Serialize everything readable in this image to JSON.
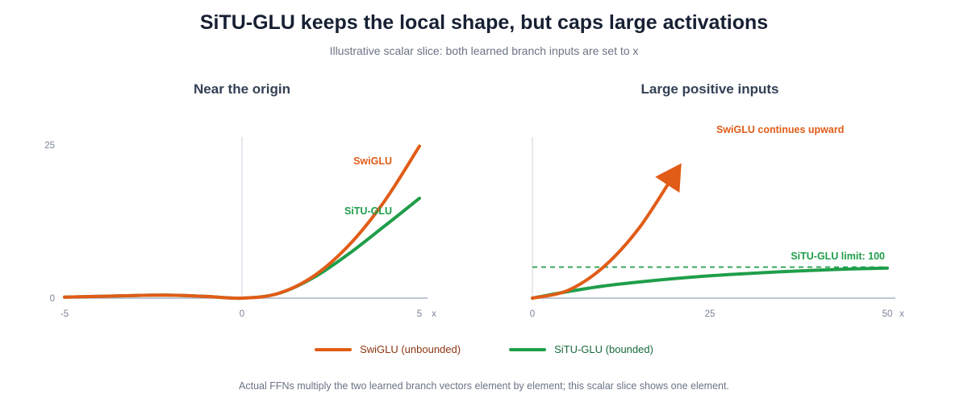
{
  "title": "SiTU-GLU keeps the local shape, but caps large activations",
  "subtitle": "Illustrative scalar slice: both learned branch inputs are set to x",
  "footnote": "Actual FFNs multiply the two learned branch vectors element by element; this scalar slice shows one element.",
  "colors": {
    "swiglu": "#e15c17",
    "situglu": "#1f9e4a",
    "axis": "#a8b4c8",
    "grid": "#d5dae2"
  },
  "legend": [
    {
      "label": "SwiGLU (unbounded)",
      "color": "#e15c17",
      "text_color": "#8a3510"
    },
    {
      "label": "SiTU-GLU (bounded)",
      "color": "#1f9e4a",
      "text_color": "#17693a"
    }
  ],
  "chart_data": [
    {
      "type": "line",
      "title": "Near the origin",
      "xlabel": "x",
      "xlim": [
        -5,
        5
      ],
      "ylim": [
        0,
        25
      ],
      "xticks": [
        "-5",
        "0",
        "5"
      ],
      "yticks": [
        "0",
        "25"
      ],
      "series": [
        {
          "name": "SwiGLU",
          "x": [
            -5,
            -4,
            -3,
            -2,
            -1,
            0,
            1,
            2,
            3,
            4,
            5
          ],
          "values": [
            0.17,
            0.29,
            0.43,
            0.48,
            0.27,
            0,
            0.73,
            3.52,
            8.57,
            15.71,
            24.83
          ]
        },
        {
          "name": "SiTU-GLU",
          "x": [
            -5,
            -4,
            -3,
            -2,
            -1,
            0,
            1,
            2,
            3,
            4,
            5
          ],
          "values": [
            0.17,
            0.29,
            0.43,
            0.48,
            0.27,
            0,
            0.73,
            3.3,
            7.2,
            11.7,
            16.3
          ]
        }
      ]
    },
    {
      "type": "line",
      "title": "Large positive inputs",
      "xlabel": "x",
      "xlim": [
        0,
        50
      ],
      "xticks": [
        "0",
        "25",
        "50"
      ],
      "annotations": {
        "swiglu": "SwiGLU continues upward",
        "situglu_limit": "SiTU-GLU limit: 100"
      },
      "limit": 100,
      "series": [
        {
          "name": "SwiGLU",
          "x": [
            0,
            5,
            10,
            15,
            20
          ],
          "values": [
            0,
            25,
            100,
            225,
            400
          ]
        },
        {
          "name": "SiTU-GLU",
          "x": [
            0,
            5,
            10,
            15,
            20,
            25,
            30,
            35,
            40,
            45,
            50
          ],
          "values": [
            0,
            21,
            39,
            52,
            63,
            72,
            79,
            85,
            90,
            94,
            97
          ]
        }
      ]
    }
  ]
}
